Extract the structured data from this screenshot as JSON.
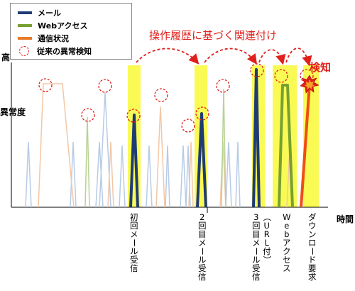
{
  "legend": {
    "items": [
      {
        "label": "メール",
        "color": "#1f3b73",
        "kind": "line"
      },
      {
        "label": "Webアクセス",
        "color": "#77a030",
        "kind": "line"
      },
      {
        "label": "通信状況",
        "color": "#e87b2a",
        "kind": "line"
      },
      {
        "label": "従来の異常検知",
        "color": "#e0201b",
        "kind": "dashed-circle"
      }
    ]
  },
  "header": {
    "correlation_label": "操作履歴に基づく関連付け",
    "detect_label": "検知"
  },
  "axes": {
    "y_top": "高",
    "y_label": "異常度",
    "x_label": "時間"
  },
  "events": [
    {
      "label": "初回メール受信"
    },
    {
      "label": "2回目メール受信"
    },
    {
      "label": "3回目メール受信"
    },
    {
      "label": "（URL付）"
    },
    {
      "label": "Webアクセス"
    },
    {
      "label": "ダウンロード要求"
    }
  ],
  "colors": {
    "highlight": "#fafa55",
    "arrow": "#e0201b",
    "mail": "#1f3b73",
    "web": "#77a030",
    "traffic": "#e87b2a"
  }
}
